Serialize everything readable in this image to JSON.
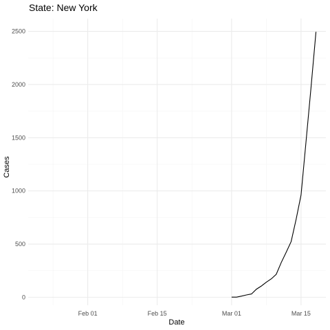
{
  "chart_data": {
    "type": "line",
    "title": "State: New York",
    "xlabel": "Date",
    "ylabel": "Cases",
    "x_type": "date",
    "xlim": [
      "2020-01-20",
      "2020-03-20"
    ],
    "ylim": [
      -75,
      2620
    ],
    "x_ticks": [
      {
        "date": "2020-02-01",
        "label": "Feb 01"
      },
      {
        "date": "2020-02-15",
        "label": "Feb 15"
      },
      {
        "date": "2020-03-01",
        "label": "Mar 01"
      },
      {
        "date": "2020-03-15",
        "label": "Mar 15"
      }
    ],
    "x_minor_ticks": [
      "2020-01-25",
      "2020-02-08",
      "2020-02-22",
      "2020-03-08"
    ],
    "y_ticks": [
      0,
      500,
      1000,
      1500,
      2000,
      2500
    ],
    "y_minor_ticks": [
      250,
      750,
      1250,
      1750,
      2250
    ],
    "grid": true,
    "series": [
      {
        "x": [
          "2020-03-01",
          "2020-03-02",
          "2020-03-03",
          "2020-03-04",
          "2020-03-05",
          "2020-03-06",
          "2020-03-07",
          "2020-03-08",
          "2020-03-09",
          "2020-03-10",
          "2020-03-11",
          "2020-03-12",
          "2020-03-13",
          "2020-03-14",
          "2020-03-15",
          "2020-03-16",
          "2020-03-17",
          "2020-03-18"
        ],
        "values": [
          1,
          1,
          11,
          22,
          31,
          76,
          106,
          142,
          173,
          216,
          327,
          423,
          524,
          732,
          962,
          1461,
          1965,
          2495
        ]
      }
    ]
  }
}
